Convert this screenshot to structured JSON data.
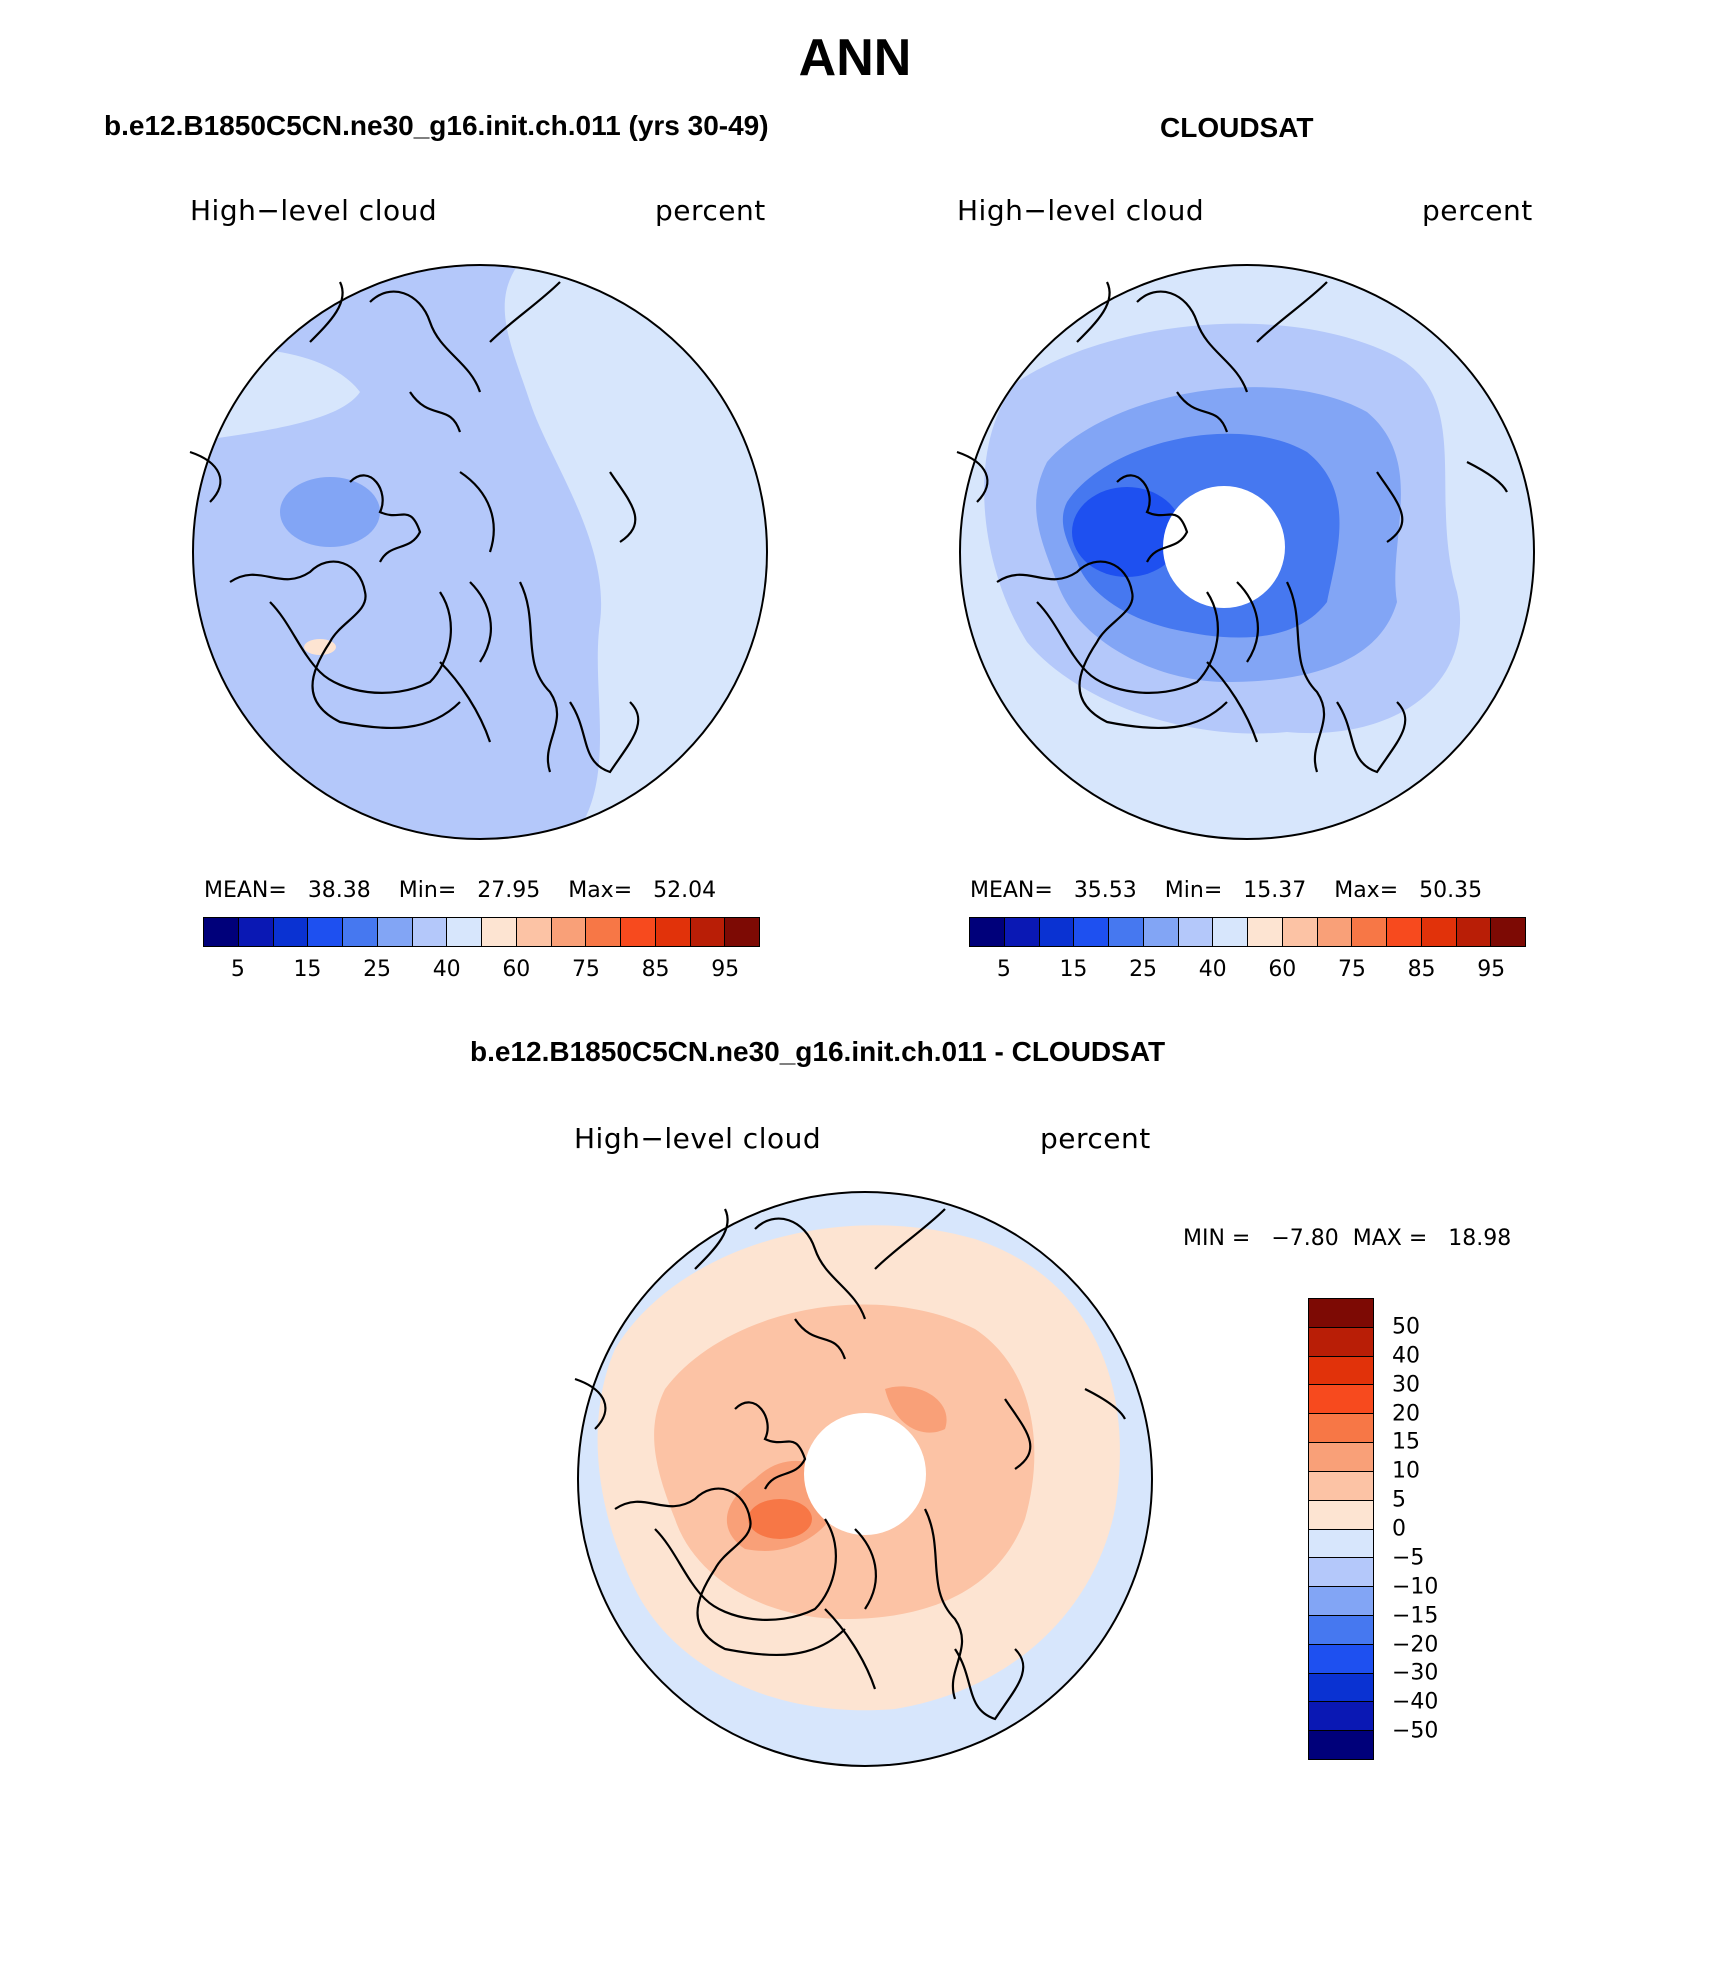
{
  "title": "ANN",
  "panels": [
    {
      "id": "model",
      "case_title": "b.e12.B1850C5CN.ne30_g16.init.ch.011 (yrs 30-49)",
      "variable": "High−level cloud",
      "units": "percent",
      "stats": {
        "mean_label": "MEAN=",
        "mean": "38.38",
        "min_label": "Min=",
        "min": "27.95",
        "max_label": "Max=",
        "max": "52.04"
      }
    },
    {
      "id": "obs",
      "case_title": "CLOUDSAT",
      "variable": "High−level cloud",
      "units": "percent",
      "stats": {
        "mean_label": "MEAN=",
        "mean": "35.53",
        "min_label": "Min=",
        "min": "15.37",
        "max_label": "Max=",
        "max": "50.35"
      }
    },
    {
      "id": "diff",
      "case_title": "b.e12.B1850C5CN.ne30_g16.init.ch.011 - CLOUDSAT",
      "variable": "High−level cloud",
      "units": "percent",
      "stats": {
        "min_label": "MIN =",
        "min": "−7.80",
        "max_label": "MAX =",
        "max": "18.98"
      }
    }
  ],
  "colorbar_abs": {
    "colors": [
      "#00007a",
      "#0a18b4",
      "#0a32d2",
      "#1e50f0",
      "#4678f0",
      "#82a5f5",
      "#b4c8fa",
      "#d7e6fc",
      "#fde4d2",
      "#fcc3a5",
      "#f9a078",
      "#f77746",
      "#f74a1e",
      "#e1320a",
      "#b91e06",
      "#7d0a04"
    ],
    "ticks": [
      "5",
      "15",
      "25",
      "40",
      "60",
      "75",
      "85",
      "95"
    ]
  },
  "colorbar_diff": {
    "colors": [
      "#7d0a04",
      "#b91e06",
      "#e1320a",
      "#f74a1e",
      "#f77746",
      "#f9a078",
      "#fcc3a5",
      "#fde4d2",
      "#d7e6fc",
      "#b4c8fa",
      "#82a5f5",
      "#4678f0",
      "#1e50f0",
      "#0a32d2",
      "#0a18b4",
      "#00007a"
    ],
    "ticks": [
      "50",
      "40",
      "30",
      "20",
      "15",
      "10",
      "5",
      "0",
      "−5",
      "−10",
      "−15",
      "−20",
      "−30",
      "−40",
      "−50"
    ]
  }
}
